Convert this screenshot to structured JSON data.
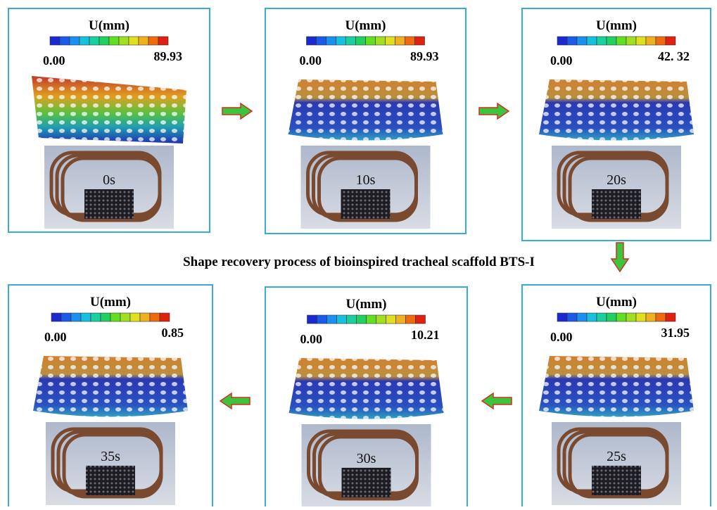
{
  "panels": [
    {
      "legend_title": "U(mm)",
      "min_label": "0.00",
      "max_label": "89.93",
      "time": "0s"
    },
    {
      "legend_title": "U(mm)",
      "min_label": "0.00",
      "max_label": "89.93",
      "time": "10s"
    },
    {
      "legend_title": "U(mm)",
      "min_label": "0.00",
      "max_label": "42. 32",
      "time": "20s"
    },
    {
      "legend_title": "U(mm)",
      "min_label": "0.00",
      "max_label": "31.95",
      "time": "25s"
    },
    {
      "legend_title": "U(mm)",
      "min_label": "0.00",
      "max_label": "10.21",
      "time": "30s"
    },
    {
      "legend_title": "U(mm)",
      "min_label": "0.00",
      "max_label": "0.85",
      "time": "35s"
    }
  ],
  "caption": "Shape recovery process of bioinspired tracheal scaffold BTS-I"
}
